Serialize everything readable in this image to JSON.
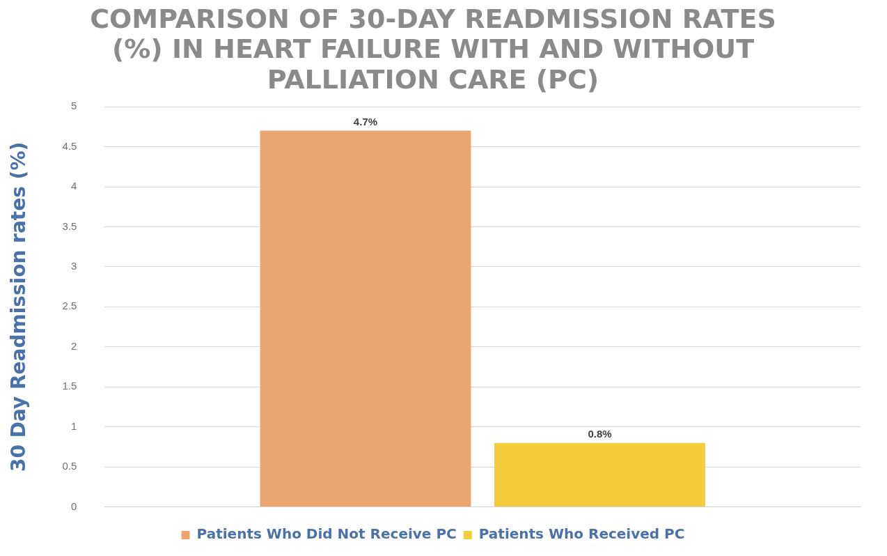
{
  "chart_data": {
    "type": "bar",
    "title": "COMPARISON OF 30-DAY READMISSION RATES (%) IN HEART FAILURE WITH AND WITHOUT PALLIATION CARE (PC)",
    "ylabel": "30 Day Readmission rates (%)",
    "categories": [
      null
    ],
    "series": [
      {
        "name": "Patients Who Did Not Receive PC",
        "color": "#eba570",
        "values": [
          4.7
        ],
        "value_labels": [
          "4.7%"
        ]
      },
      {
        "name": "Patients Who Received PC",
        "color": "#f3cd3e",
        "values": [
          0.8
        ],
        "value_labels": [
          "0.8%"
        ]
      }
    ],
    "ylim": [
      0,
      5
    ],
    "yticks": [
      0,
      0.5,
      1,
      1.5,
      2,
      2.5,
      3,
      3.5,
      4,
      4.5,
      5
    ],
    "grid": "y",
    "legend": "bottom"
  }
}
